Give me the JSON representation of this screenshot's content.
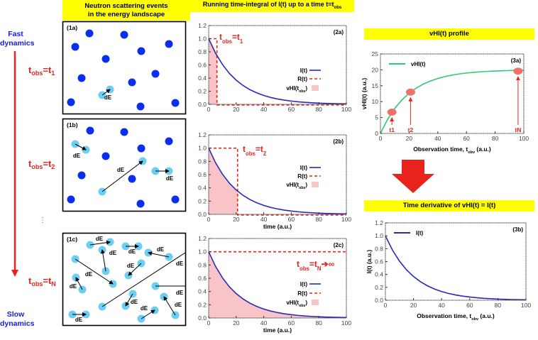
{
  "left_axis": {
    "top_label_1": "Fast",
    "top_label_2": "dynamics",
    "bottom_label_1": "Slow",
    "bottom_label_2": "dynamics",
    "ellipsis": "⋮",
    "markers": [
      {
        "t": "t",
        "sub": "obs",
        "eq": "=t",
        "idx": "1"
      },
      {
        "t": "t",
        "sub": "obs",
        "eq": "=t",
        "idx": "2"
      },
      {
        "t": "t",
        "sub": "obs",
        "eq": "=t",
        "idx": "N"
      }
    ]
  },
  "column1": {
    "header_line1": "Neutron scattering events",
    "header_line2": "in the energy landscape",
    "panels": [
      {
        "label": "(1a)",
        "step_label": "dE"
      },
      {
        "label": "(1b)",
        "step_label": "dE"
      },
      {
        "label": "(1c)",
        "step_label": "dE"
      }
    ]
  },
  "column2": {
    "header": "Running time-integral of I(t) up to a time t=t",
    "header_sub": "obs"
  },
  "column3": {
    "header_a": "vHI(t) profile",
    "header_b": "Time derivative of vHI(t) = I(t)"
  },
  "colors": {
    "I": "#2a2ab8",
    "R": "#e8231c",
    "vHI_fill": "#f9c4c8",
    "vHI_curve": "#2ecc71",
    "marker": "#f2706a",
    "dot": "#0a2ef0",
    "dot_light": "#6ccff2",
    "header_bg": "#ffff00"
  },
  "chart_data": [
    {
      "type": "area",
      "panel": "(2a)",
      "xlabel": "",
      "ylabel": "",
      "xlim": [
        0,
        100
      ],
      "ylim": [
        0,
        1.2
      ],
      "xticks": [
        "0",
        "20",
        "40",
        "60",
        "80",
        "100"
      ],
      "yticks": [
        "0.0",
        "0.2",
        "0.4",
        "0.6",
        "0.8",
        "1.0",
        "1.2"
      ],
      "t_obs": 6,
      "annotation": {
        "t": "t",
        "sub": "obs",
        "eq": "=t",
        "idx": "1",
        "tail": ""
      },
      "legend": {
        "I": "I(t)",
        "R": "R(t)",
        "vHI": "vHI(t",
        "vHI_sub": "obs",
        "vHI_end": ")"
      },
      "x": [
        0,
        5,
        10,
        15,
        20,
        25,
        30,
        35,
        40,
        45,
        50,
        55,
        60,
        65,
        70,
        75,
        80,
        85,
        90,
        95,
        100
      ],
      "series": [
        {
          "name": "I(t)",
          "values": [
            1,
            0.779,
            0.607,
            0.472,
            0.368,
            0.287,
            0.223,
            0.174,
            0.135,
            0.105,
            0.082,
            0.064,
            0.05,
            0.039,
            0.03,
            0.024,
            0.018,
            0.014,
            0.011,
            0.009,
            0.007
          ]
        }
      ]
    },
    {
      "type": "area",
      "panel": "(2b)",
      "xlabel": "time (a.u.)",
      "ylabel": "",
      "xlim": [
        0,
        100
      ],
      "ylim": [
        0,
        1.2
      ],
      "xticks": [
        "0",
        "20",
        "40",
        "60",
        "80",
        "100"
      ],
      "yticks": [
        "0.0",
        "0.2",
        "0.4",
        "0.6",
        "0.8",
        "1.0",
        "1.2"
      ],
      "t_obs": 21,
      "annotation": {
        "t": "t",
        "sub": "obs",
        "eq": "=t",
        "idx": "2",
        "tail": ""
      },
      "legend": {
        "I": "I(t)",
        "R": "R(t)",
        "vHI": "vHI(t",
        "vHI_sub": "obs",
        "vHI_end": ")"
      },
      "x": [
        0,
        5,
        10,
        15,
        20,
        25,
        30,
        35,
        40,
        45,
        50,
        55,
        60,
        65,
        70,
        75,
        80,
        85,
        90,
        95,
        100
      ],
      "series": [
        {
          "name": "I(t)",
          "values": [
            1,
            0.779,
            0.607,
            0.472,
            0.368,
            0.287,
            0.223,
            0.174,
            0.135,
            0.105,
            0.082,
            0.064,
            0.05,
            0.039,
            0.03,
            0.024,
            0.018,
            0.014,
            0.011,
            0.009,
            0.007
          ]
        }
      ]
    },
    {
      "type": "area",
      "panel": "(2c)",
      "xlabel": "time (a.u.)",
      "ylabel": "",
      "xlim": [
        0,
        100
      ],
      "ylim": [
        0,
        1.2
      ],
      "xticks": [
        "0",
        "20",
        "40",
        "60",
        "80",
        "100"
      ],
      "yticks": [
        "0.0",
        "0.2",
        "0.4",
        "0.6",
        "0.8",
        "1.0",
        "1.2"
      ],
      "t_obs": 100,
      "annotation": {
        "t": "t",
        "sub": "obs",
        "eq": "=t",
        "idx": "N",
        "tail": "➔∞"
      },
      "legend": {
        "I": "I(t)",
        "R": "R(t)",
        "vHI": "vHI(t",
        "vHI_sub": "obs",
        "vHI_end": ")"
      },
      "x": [
        0,
        5,
        10,
        15,
        20,
        25,
        30,
        35,
        40,
        45,
        50,
        55,
        60,
        65,
        70,
        75,
        80,
        85,
        90,
        95,
        100
      ],
      "series": [
        {
          "name": "I(t)",
          "values": [
            1,
            0.779,
            0.607,
            0.472,
            0.368,
            0.287,
            0.223,
            0.174,
            0.135,
            0.105,
            0.082,
            0.064,
            0.05,
            0.039,
            0.03,
            0.024,
            0.018,
            0.014,
            0.011,
            0.009,
            0.007
          ]
        }
      ]
    },
    {
      "type": "line",
      "panel": "(3a)",
      "xlabel": "Observation time, t",
      "xlabel_sub": "obv",
      "xlabel_end": " (a.u.)",
      "ylabel": "vHI(t) (a.u.)",
      "xlim": [
        0,
        100
      ],
      "ylim": [
        0,
        25
      ],
      "xticks": [
        "0",
        "20",
        "40",
        "60",
        "80",
        "100"
      ],
      "yticks": [
        "0",
        "5",
        "10",
        "15",
        "20",
        "25"
      ],
      "legend": {
        "line": "vHI(t)"
      },
      "x": [
        0,
        5,
        10,
        15,
        20,
        25,
        30,
        35,
        40,
        45,
        50,
        55,
        60,
        65,
        70,
        75,
        80,
        85,
        90,
        95,
        100
      ],
      "series": [
        {
          "name": "vHI(t)",
          "values": [
            0,
            4.42,
            7.87,
            10.55,
            12.64,
            14.27,
            15.54,
            16.53,
            17.29,
            17.89,
            18.36,
            18.72,
            19.0,
            19.22,
            19.39,
            19.53,
            19.63,
            19.71,
            19.78,
            19.83,
            19.87
          ]
        }
      ],
      "markers": [
        {
          "label": "t1",
          "x": 8,
          "y": 6.7
        },
        {
          "label": "t2",
          "x": 21,
          "y": 13.0
        },
        {
          "label": "tN",
          "x": 96,
          "y": 19.6
        }
      ]
    },
    {
      "type": "line",
      "panel": "(3b)",
      "xlabel": "Observation time, t",
      "xlabel_sub": "obv",
      "xlabel_end": " (a.u.)",
      "ylabel": "I(t) (a.u.)",
      "xlim": [
        0,
        100
      ],
      "ylim": [
        0,
        1.2
      ],
      "xticks": [
        "0",
        "20",
        "40",
        "60",
        "80",
        "100"
      ],
      "yticks": [
        "0.0",
        "0.2",
        "0.4",
        "0.6",
        "0.8",
        "1.0",
        "1.2"
      ],
      "legend": {
        "line": "I(t)"
      },
      "x": [
        0,
        5,
        10,
        15,
        20,
        25,
        30,
        35,
        40,
        45,
        50,
        55,
        60,
        65,
        70,
        75,
        80,
        85,
        90,
        95,
        100
      ],
      "series": [
        {
          "name": "I(t)",
          "values": [
            1,
            0.779,
            0.607,
            0.472,
            0.368,
            0.287,
            0.223,
            0.174,
            0.135,
            0.105,
            0.082,
            0.064,
            0.05,
            0.039,
            0.03,
            0.024,
            0.018,
            0.014,
            0.011,
            0.009,
            0.007
          ]
        }
      ]
    }
  ]
}
